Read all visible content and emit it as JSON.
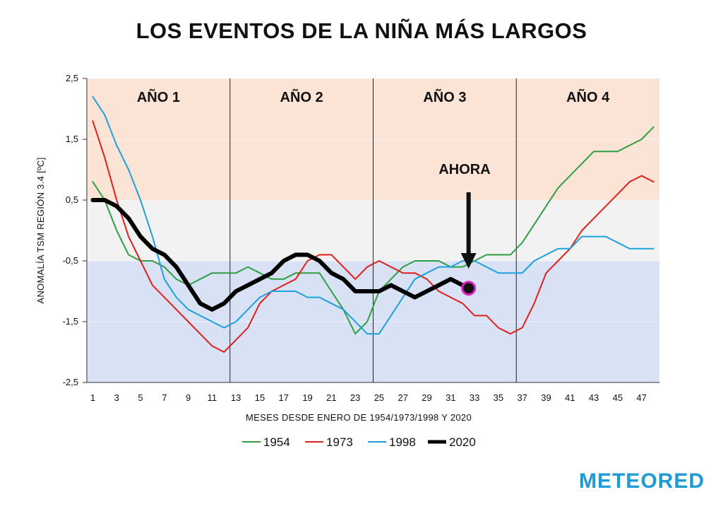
{
  "title": "LOS EVENTOS DE LA NIÑA MÁS LARGOS",
  "brand": "METEORED",
  "annotation": "AHORA",
  "chart_data": {
    "type": "line",
    "title": "LOS EVENTOS DE LA NIÑA MÁS LARGOS",
    "xlabel": "MESES DESDE ENERO DE 1954/1973/1998 Y 2020",
    "ylabel": "ANOMALÍA  TSM REGIÓN 3.4 [ºC]",
    "xlim": [
      0.5,
      48.5
    ],
    "ylim": [
      -2.5,
      2.5
    ],
    "x_ticks": [
      "1",
      "3",
      "5",
      "7",
      "9",
      "11",
      "13",
      "15",
      "17",
      "19",
      "21",
      "23",
      "25",
      "27",
      "29",
      "31",
      "33",
      "35",
      "37",
      "39",
      "41",
      "43",
      "45",
      "47"
    ],
    "y_ticks": [
      "2,5",
      "1,5",
      "0,5",
      "-0,5",
      "-1,5",
      "-2,5"
    ],
    "y_tick_values": [
      2.5,
      1.5,
      0.5,
      -0.5,
      -1.5,
      -2.5
    ],
    "bands": [
      {
        "from": 0.5,
        "to": 2.5,
        "color": "#fbe3d6"
      },
      {
        "from": -0.5,
        "to": 0.5,
        "color": "#f2f2f2"
      },
      {
        "from": -2.5,
        "to": -0.5,
        "color": "#d9e1f4"
      }
    ],
    "year_labels": [
      "AÑO 1",
      "AÑO 2",
      "AÑO 3",
      "AÑO 4"
    ],
    "year_dividers": [
      12.5,
      24.5,
      36.5
    ],
    "ahora_x": 32.5,
    "marker": {
      "x": 32.5,
      "y": -0.95,
      "color": "#e020c0"
    },
    "legend_position": "bottom",
    "series": [
      {
        "name": "1954",
        "color": "#2ea043",
        "width": 2,
        "values": [
          0.8,
          0.5,
          0,
          -0.4,
          -0.5,
          -0.5,
          -0.6,
          -0.8,
          -0.9,
          -0.8,
          -0.7,
          -0.7,
          -0.7,
          -0.6,
          -0.7,
          -0.8,
          -0.8,
          -0.7,
          -0.7,
          -0.7,
          -1.0,
          -1.3,
          -1.7,
          -1.5,
          -1.0,
          -0.8,
          -0.6,
          -0.5,
          -0.5,
          -0.5,
          -0.6,
          -0.6,
          -0.5,
          -0.4,
          -0.4,
          -0.4,
          -0.2,
          0.1,
          0.4,
          0.7,
          0.9,
          1.1,
          1.3,
          1.3,
          1.3,
          1.4,
          1.5,
          1.7
        ]
      },
      {
        "name": "1973",
        "color": "#e0201c",
        "width": 2,
        "values": [
          1.8,
          1.2,
          0.5,
          -0.1,
          -0.5,
          -0.9,
          -1.1,
          -1.3,
          -1.5,
          -1.7,
          -1.9,
          -2.0,
          -1.8,
          -1.6,
          -1.2,
          -1.0,
          -0.9,
          -0.8,
          -0.5,
          -0.4,
          -0.4,
          -0.6,
          -0.8,
          -0.6,
          -0.5,
          -0.6,
          -0.7,
          -0.7,
          -0.8,
          -1.0,
          -1.1,
          -1.2,
          -1.4,
          -1.4,
          -1.6,
          -1.7,
          -1.6,
          -1.2,
          -0.7,
          -0.5,
          -0.3,
          0.0,
          0.2,
          0.4,
          0.6,
          0.8,
          0.9,
          0.8
        ]
      },
      {
        "name": "1998",
        "color": "#1ea1dc",
        "width": 2,
        "values": [
          2.2,
          1.9,
          1.4,
          1.0,
          0.5,
          -0.1,
          -0.8,
          -1.1,
          -1.3,
          -1.4,
          -1.5,
          -1.6,
          -1.5,
          -1.3,
          -1.1,
          -1.0,
          -1.0,
          -1.0,
          -1.1,
          -1.1,
          -1.2,
          -1.3,
          -1.5,
          -1.7,
          -1.7,
          -1.4,
          -1.1,
          -0.8,
          -0.7,
          -0.6,
          -0.6,
          -0.5,
          -0.5,
          -0.6,
          -0.7,
          -0.7,
          -0.7,
          -0.5,
          -0.4,
          -0.3,
          -0.3,
          -0.1,
          -0.1,
          -0.1,
          -0.2,
          -0.3,
          -0.3,
          -0.3
        ]
      },
      {
        "name": "2020",
        "color": "#000000",
        "width": 6,
        "values": [
          0.5,
          0.5,
          0.4,
          0.2,
          -0.1,
          -0.3,
          -0.4,
          -0.6,
          -0.9,
          -1.2,
          -1.3,
          -1.2,
          -1.0,
          -0.9,
          -0.8,
          -0.7,
          -0.5,
          -0.4,
          -0.4,
          -0.5,
          -0.7,
          -0.8,
          -1.0,
          -1.0,
          -1.0,
          -0.9,
          -1.0,
          -1.1,
          -1.0,
          -0.9,
          -0.8,
          -0.9
        ]
      }
    ]
  }
}
